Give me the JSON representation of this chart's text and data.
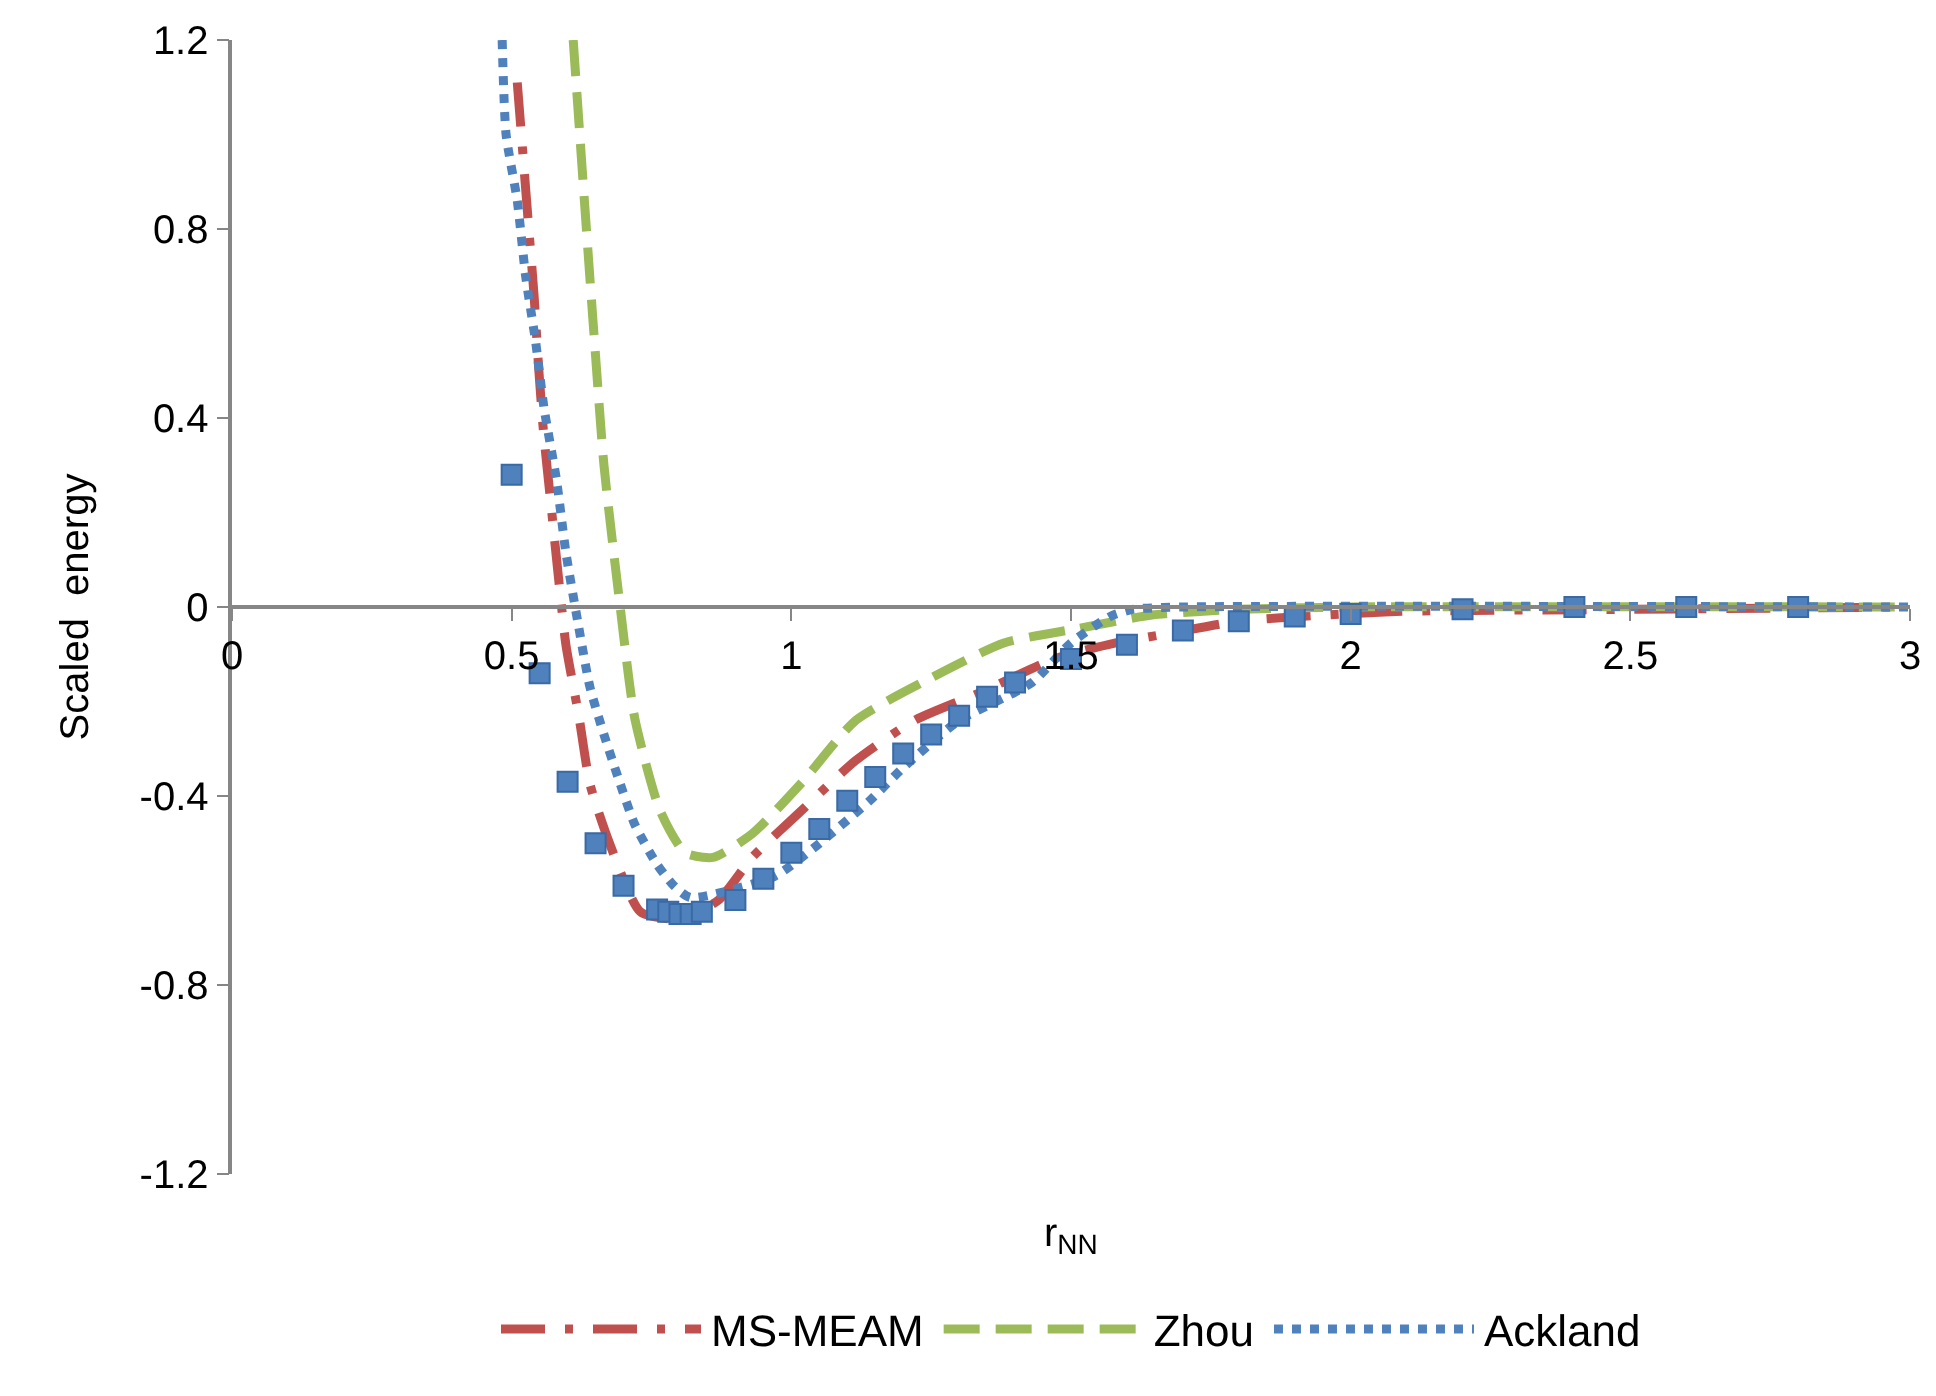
{
  "chart_data": {
    "type": "line",
    "xlabel": "r$_{NN}$",
    "ylabel": "Scaled  energy",
    "xlim": [
      0,
      3
    ],
    "ylim": [
      -1.2,
      1.2
    ],
    "xticks": [
      0,
      0.5,
      1,
      1.5,
      2,
      2.5,
      3
    ],
    "yticks": [
      -1.2,
      -0.8,
      -0.4,
      0,
      0.4,
      0.8,
      1.2
    ],
    "grid": false,
    "legend": "bottom",
    "series": [
      {
        "type": "scatter",
        "marker": "square",
        "color": "#4f81bd",
        "x": [
          0.5,
          0.55,
          0.6,
          0.65,
          0.7,
          0.76,
          0.78,
          0.8,
          0.82,
          0.84,
          0.9,
          0.95,
          1.0,
          1.05,
          1.1,
          1.15,
          1.2,
          1.25,
          1.3,
          1.35,
          1.4,
          1.5,
          1.6,
          1.7,
          1.8,
          1.9,
          2.0,
          2.2,
          2.4,
          2.6,
          2.8
        ],
        "values": [
          0.28,
          -0.14,
          -0.37,
          -0.5,
          -0.59,
          -0.64,
          -0.645,
          -0.65,
          -0.65,
          -0.645,
          -0.62,
          -0.575,
          -0.52,
          -0.47,
          -0.41,
          -0.36,
          -0.31,
          -0.27,
          -0.23,
          -0.19,
          -0.16,
          -0.11,
          -0.08,
          -0.05,
          -0.03,
          -0.02,
          -0.015,
          -0.005,
          0,
          0,
          0
        ]
      },
      {
        "name": "MS-MEAM",
        "color": "#c0504d",
        "line_style": "dashdot",
        "x": [
          0.51,
          0.52,
          0.53,
          0.54,
          0.548,
          0.557,
          0.57,
          0.583,
          0.597,
          0.62,
          0.64,
          0.675,
          0.73,
          0.8,
          0.87,
          0.93,
          1.01,
          1.115,
          1.22,
          1.34,
          1.47,
          1.58,
          1.68,
          1.8,
          2.07,
          2.5,
          3
        ],
        "values": [
          1.11,
          0.96,
          0.81,
          0.66,
          0.51,
          0.37,
          0.22,
          0.07,
          -0.08,
          -0.23,
          -0.375,
          -0.5,
          -0.645,
          -0.66,
          -0.62,
          -0.53,
          -0.44,
          -0.325,
          -0.24,
          -0.18,
          -0.11,
          -0.076,
          -0.055,
          -0.03,
          -0.01,
          -0.005,
          0
        ]
      },
      {
        "name": "Zhou",
        "color": "#9bbb59",
        "line_style": "dashed",
        "x": [
          0.61,
          0.63,
          0.647,
          0.665,
          0.694,
          0.72,
          0.765,
          0.81,
          0.86,
          0.93,
          1.02,
          1.115,
          1.25,
          1.38,
          1.51,
          1.645,
          1.8,
          2,
          3
        ],
        "values": [
          1.2,
          0.86,
          0.58,
          0.3,
          0,
          -0.235,
          -0.43,
          -0.52,
          -0.53,
          -0.48,
          -0.37,
          -0.24,
          -0.15,
          -0.076,
          -0.046,
          -0.017,
          -0.005,
          0,
          0
        ]
      },
      {
        "name": "Ackland",
        "color": "#4f81bd",
        "line_style": "dotted",
        "x": [
          0.483,
          0.49,
          0.51,
          0.525,
          0.543,
          0.558,
          0.58,
          0.597,
          0.618,
          0.64,
          0.665,
          0.69,
          0.72,
          0.76,
          0.79,
          0.82,
          0.97,
          1.04,
          1.14,
          1.2,
          1.3,
          1.43,
          1.5,
          1.57,
          1.61,
          1.7,
          3
        ],
        "values": [
          1.2,
          1.0,
          0.86,
          0.7,
          0.56,
          0.42,
          0.27,
          0.115,
          -0.03,
          -0.17,
          -0.27,
          -0.36,
          -0.46,
          -0.545,
          -0.59,
          -0.615,
          -0.57,
          -0.51,
          -0.41,
          -0.34,
          -0.24,
          -0.16,
          -0.076,
          -0.02,
          -0.005,
          0,
          0
        ]
      }
    ]
  }
}
